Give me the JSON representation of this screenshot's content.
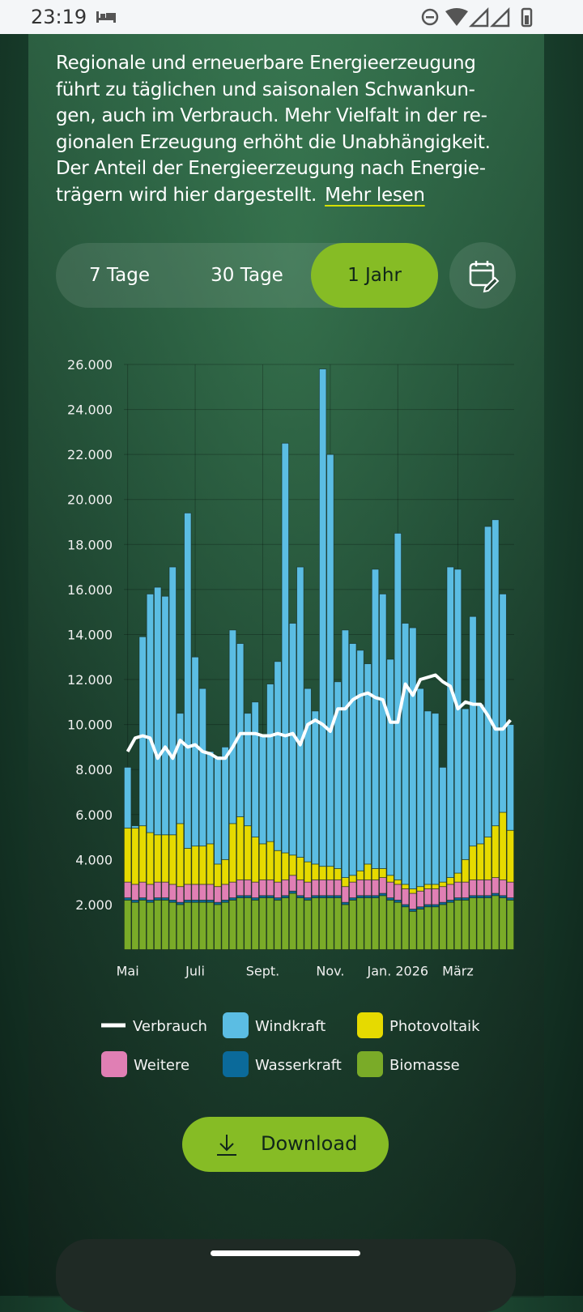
{
  "status_bar": {
    "time": "23:19"
  },
  "intro": {
    "lines": [
      "Regionale und erneuerbare Energieerzeugung",
      "führt zu täglichen und saisonalen Schwankun-",
      "gen, auch im Verbrauch. Mehr Vielfalt in der re-",
      "gionalen Erzeugung erhöht die Unabhängigkeit.",
      "Der Anteil der Energieerzeugung nach Energie-",
      "trägern wird hier dargestellt."
    ],
    "link": "Mehr lesen"
  },
  "tabs": [
    "7 Tage",
    "30 Tage",
    "1 Jahr"
  ],
  "active_tab": 2,
  "chart_data": {
    "type": "bar",
    "stacked": true,
    "categories": [
      "Mai",
      null,
      null,
      null,
      null,
      null,
      null,
      null,
      null,
      "Juli",
      null,
      null,
      null,
      null,
      null,
      null,
      null,
      null,
      "Sept.",
      null,
      null,
      null,
      null,
      null,
      null,
      null,
      null,
      "Nov.",
      null,
      null,
      null,
      null,
      null,
      null,
      null,
      null,
      "Jan. 2026",
      null,
      null,
      null,
      null,
      null,
      null,
      null,
      "März",
      null,
      null,
      null,
      null,
      null,
      null,
      null
    ],
    "ylim": [
      0,
      26000
    ],
    "yticks": [
      {
        "value": 2000,
        "label": "2.000"
      },
      {
        "value": 4000,
        "label": "4.000"
      },
      {
        "value": 6000,
        "label": "6.000"
      },
      {
        "value": 8000,
        "label": "8.000"
      },
      {
        "value": 10000,
        "label": "10.000"
      },
      {
        "value": 12000,
        "label": "12.000"
      },
      {
        "value": 14000,
        "label": "14.000"
      },
      {
        "value": 16000,
        "label": "16.000"
      },
      {
        "value": 18000,
        "label": "18.000"
      },
      {
        "value": 20000,
        "label": "20.000"
      },
      {
        "value": 22000,
        "label": "22.000"
      },
      {
        "value": 24000,
        "label": "24.000"
      },
      {
        "value": 26000,
        "label": "26.000"
      }
    ],
    "grid": true,
    "series": [
      {
        "name": "Verbrauch",
        "type": "line",
        "color": "#ffffff",
        "values": [
          8800,
          9400,
          9500,
          9400,
          8500,
          9000,
          8500,
          9300,
          9000,
          9100,
          8800,
          8700,
          8500,
          8500,
          9000,
          9600,
          9600,
          9600,
          9500,
          9500,
          9600,
          9500,
          9600,
          9100,
          10000,
          10200,
          10000,
          9700,
          10700,
          10700,
          11100,
          11300,
          11400,
          11200,
          11100,
          10100,
          10100,
          11800,
          11300,
          12000,
          12100,
          12200,
          11900,
          11700,
          10700,
          11000,
          10900,
          10900,
          10400,
          9800,
          9800,
          10200
        ]
      },
      {
        "name": "Windkraft",
        "color": "#5bbde3",
        "values": [
          2700,
          100,
          8400,
          10600,
          11000,
          10600,
          11900,
          4900,
          14900,
          8400,
          7000,
          4100,
          4800,
          5000,
          8600,
          7700,
          5000,
          6000,
          4800,
          7000,
          8400,
          18200,
          10300,
          12900,
          7700,
          6800,
          22100,
          18300,
          8300,
          11000,
          10300,
          9800,
          8900,
          13300,
          12200,
          9600,
          15400,
          11600,
          11600,
          8800,
          7700,
          7600,
          5100,
          13800,
          13500,
          6700,
          10200,
          6200,
          13800,
          13600,
          9700,
          4700
        ]
      },
      {
        "name": "Photovoltaik",
        "color": "#e6da00",
        "values": [
          2400,
          2500,
          2500,
          2300,
          2100,
          2100,
          2200,
          2800,
          1600,
          1700,
          1700,
          1800,
          1000,
          1100,
          2600,
          2800,
          2400,
          2000,
          1600,
          1700,
          1400,
          1200,
          900,
          1000,
          900,
          700,
          600,
          600,
          500,
          400,
          300,
          400,
          700,
          500,
          400,
          300,
          200,
          200,
          200,
          200,
          200,
          200,
          200,
          300,
          400,
          1000,
          1500,
          1600,
          1900,
          2300,
          3000,
          2300
        ]
      },
      {
        "name": "Weitere",
        "color": "#e07fb4",
        "values": [
          700,
          700,
          700,
          700,
          700,
          700,
          700,
          700,
          700,
          700,
          700,
          700,
          700,
          700,
          700,
          700,
          700,
          700,
          700,
          700,
          700,
          700,
          700,
          700,
          700,
          700,
          700,
          700,
          700,
          700,
          700,
          700,
          700,
          700,
          700,
          700,
          700,
          700,
          700,
          700,
          700,
          700,
          700,
          700,
          700,
          700,
          700,
          700,
          700,
          700,
          700,
          700
        ]
      },
      {
        "name": "Wasserkraft",
        "color": "#0b6a9a",
        "values": [
          100,
          100,
          100,
          100,
          100,
          100,
          100,
          100,
          100,
          100,
          100,
          100,
          100,
          100,
          100,
          100,
          100,
          100,
          100,
          100,
          100,
          100,
          100,
          100,
          100,
          100,
          100,
          100,
          100,
          100,
          100,
          100,
          100,
          100,
          100,
          100,
          100,
          100,
          100,
          100,
          100,
          100,
          100,
          100,
          100,
          100,
          100,
          100,
          100,
          100,
          100,
          100
        ]
      },
      {
        "name": "Biomasse",
        "color": "#7aab28",
        "values": [
          2200,
          2100,
          2200,
          2100,
          2200,
          2200,
          2100,
          2000,
          2100,
          2100,
          2100,
          2100,
          2000,
          2100,
          2200,
          2300,
          2300,
          2200,
          2300,
          2300,
          2200,
          2300,
          2500,
          2300,
          2200,
          2300,
          2300,
          2300,
          2300,
          2000,
          2200,
          2300,
          2300,
          2300,
          2400,
          2200,
          2100,
          1900,
          1700,
          1800,
          1900,
          1900,
          2000,
          2100,
          2200,
          2200,
          2300,
          2300,
          2300,
          2400,
          2300,
          2200
        ]
      }
    ]
  },
  "download": "Download"
}
